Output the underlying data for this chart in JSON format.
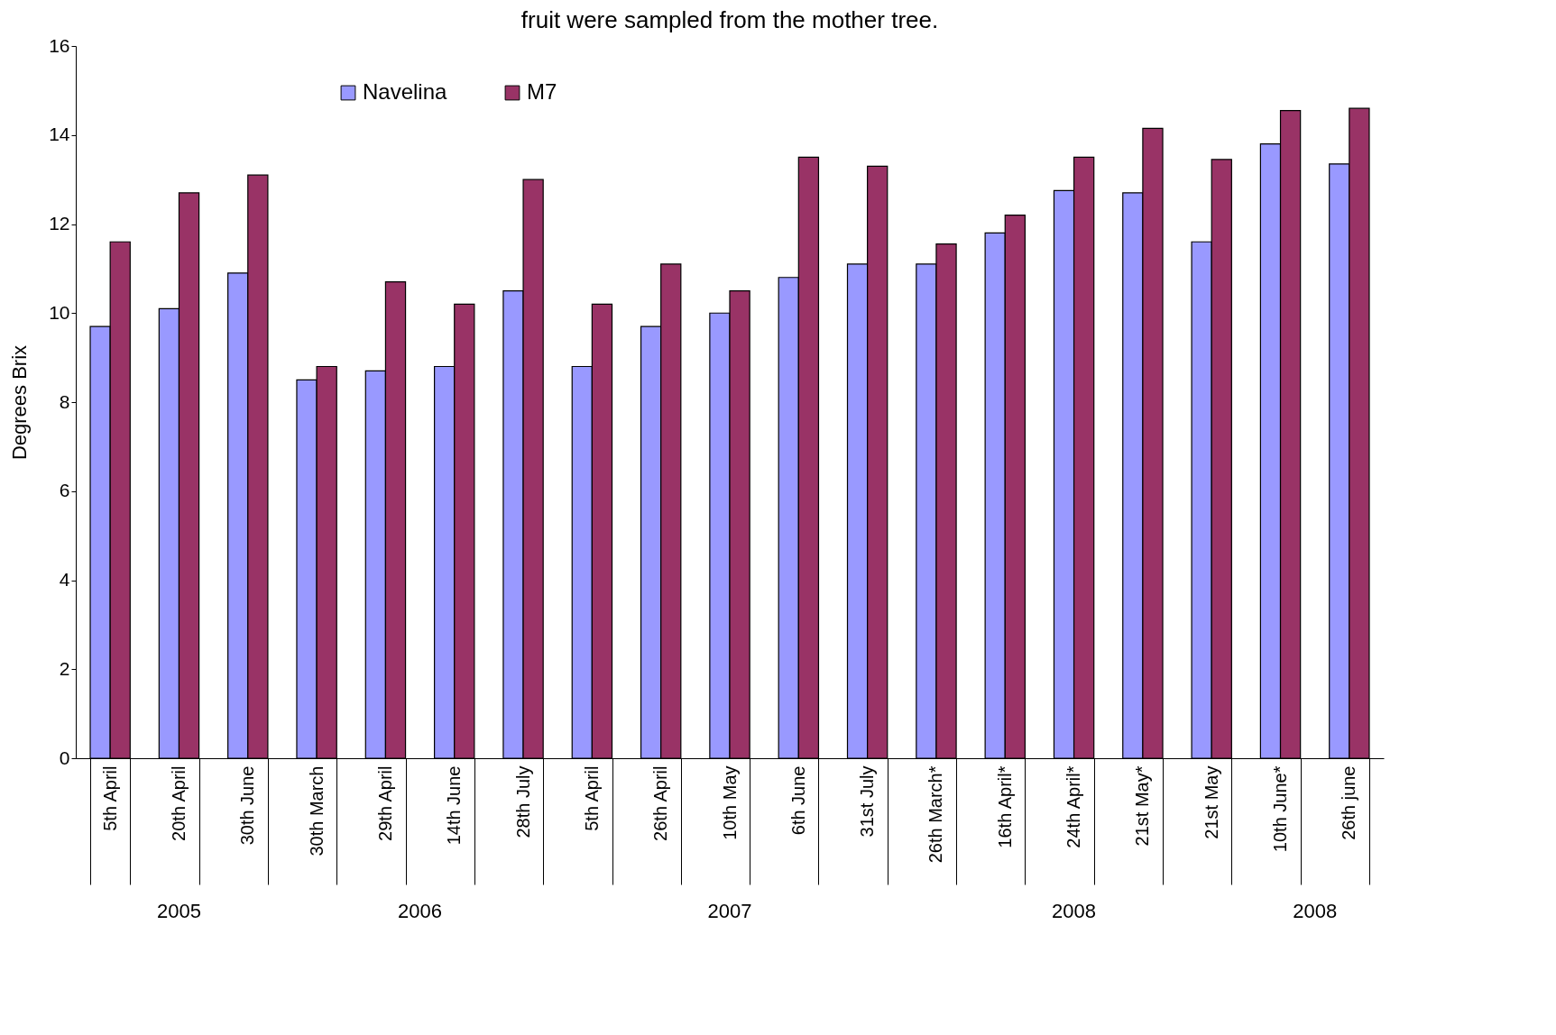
{
  "chart_data": {
    "type": "bar",
    "title": "fruit were sampled from the mother tree.",
    "ylabel": "Degrees Brix",
    "categories": [
      "5th April",
      "20th April",
      "30th June",
      "30th March",
      "29th April",
      "14th June",
      "28th July",
      "5th April",
      "26th April",
      "10th May",
      "6th June",
      "31st July",
      "26th March*",
      "16th April*",
      "24th April*",
      "21st May*",
      "21st May",
      "10th June*",
      "26th june"
    ],
    "series": [
      {
        "name": "Navelina",
        "color": "#9999ff",
        "values": [
          9.7,
          10.1,
          10.9,
          8.5,
          8.7,
          8.8,
          10.5,
          8.8,
          9.7,
          10.0,
          10.8,
          11.1,
          11.1,
          11.8,
          12.75,
          12.7,
          11.6,
          13.8,
          13.35
        ]
      },
      {
        "name": "M7",
        "color": "#993366",
        "values": [
          11.6,
          12.7,
          13.1,
          8.8,
          10.7,
          10.2,
          13.0,
          10.2,
          11.1,
          10.5,
          13.5,
          13.3,
          11.55,
          12.2,
          13.5,
          14.15,
          13.45,
          14.55,
          14.6
        ]
      }
    ],
    "ylim": [
      0,
      16
    ],
    "yticks": [
      0,
      2,
      4,
      6,
      8,
      10,
      12,
      14,
      16
    ],
    "grid": false,
    "legend": "top",
    "annotations": [
      "2005",
      "2006",
      "2007",
      "2008",
      "2008"
    ]
  }
}
